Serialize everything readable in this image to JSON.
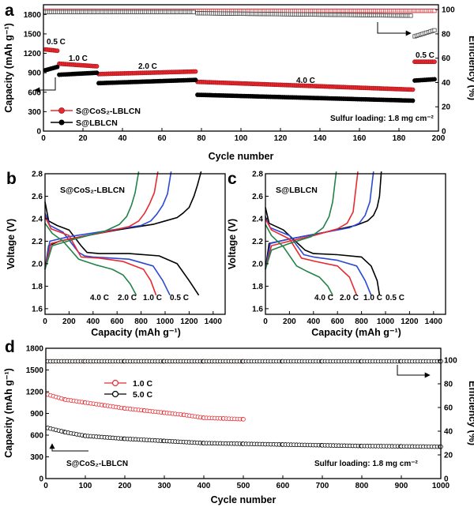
{
  "colors": {
    "red": "#e8292f",
    "black": "#000000",
    "blue": "#2a49d6",
    "green": "#23824a",
    "gray": "#444444"
  },
  "chart_data": [
    {
      "panel": "a",
      "type": "scatter",
      "xlabel": "Cycle number",
      "ylabel": "Capacity (mAh g⁻¹)",
      "y2label": "Efficiency (%)",
      "xlim": [
        0,
        200
      ],
      "ylim": [
        0,
        1950
      ],
      "y2lim": [
        0,
        104
      ],
      "xticks": [
        0,
        20,
        40,
        60,
        80,
        100,
        120,
        140,
        160,
        180,
        200
      ],
      "yticks": [
        0,
        300,
        600,
        900,
        1200,
        1500,
        1800
      ],
      "y2ticks": [
        0,
        20,
        40,
        60,
        80,
        100
      ],
      "rate_labels": [
        "0.5 C",
        "1.0 C",
        "2.0 C",
        "4.0 C",
        "0.5 C"
      ],
      "note": "Sulfur loading: 1.8 mg cm⁻²",
      "series": [
        {
          "name": "S@CoS₂-LBLCN",
          "axis": "left",
          "color": "red",
          "segments": [
            {
              "x": [
                1,
                7
              ],
              "y": [
                1260,
                1240
              ]
            },
            {
              "x": [
                8,
                27
              ],
              "y": [
                1040,
                1000
              ]
            },
            {
              "x": [
                28,
                77
              ],
              "y": [
                880,
                920
              ]
            },
            {
              "x": [
                78,
                187
              ],
              "y": [
                760,
                640
              ]
            },
            {
              "x": [
                188,
                198
              ],
              "y": [
                1070,
                1070
              ]
            }
          ]
        },
        {
          "name": "S@LBLCN",
          "axis": "left",
          "color": "black",
          "segments": [
            {
              "x": [
                1,
                7
              ],
              "y": [
                940,
                990
              ]
            },
            {
              "x": [
                8,
                27
              ],
              "y": [
                870,
                900
              ]
            },
            {
              "x": [
                28,
                77
              ],
              "y": [
                740,
                790
              ]
            },
            {
              "x": [
                78,
                187
              ],
              "y": [
                560,
                470
              ]
            },
            {
              "x": [
                188,
                198
              ],
              "y": [
                780,
                800
              ]
            }
          ]
        },
        {
          "name": "",
          "axis": "right",
          "color": "red",
          "hollow": true,
          "segments": [
            {
              "x": [
                1,
                198
              ],
              "y": [
                99,
                99
              ]
            }
          ]
        },
        {
          "name": "",
          "axis": "right",
          "color": "gray",
          "hollow": true,
          "segments": [
            {
              "x": [
                1,
                76
              ],
              "y": [
                98,
                98
              ]
            },
            {
              "x": [
                78,
                186
              ],
              "y": [
                97,
                95
              ]
            },
            {
              "x": [
                188,
                198
              ],
              "y": [
                78,
                83
              ]
            }
          ]
        }
      ]
    },
    {
      "panel": "b",
      "type": "line",
      "title": "S@CoS₂-LBLCN",
      "xlabel": "Capacity (mAh g⁻¹)",
      "ylabel": "Voltage (V)",
      "xlim": [
        0,
        1500
      ],
      "ylim": [
        1.55,
        2.8
      ],
      "xticks": [
        0,
        200,
        400,
        600,
        800,
        1000,
        1200,
        1400
      ],
      "yticks": [
        1.6,
        1.8,
        2.0,
        2.2,
        2.4,
        2.6,
        2.8
      ],
      "rate_labels": [
        "4.0 C",
        "2.0 C",
        "1.0 C",
        "0.5 C"
      ],
      "series": [
        {
          "name": "0.5 C",
          "color": "black",
          "discharge": {
            "x": [
              0,
              30,
              100,
              200,
              300,
              350,
              450,
              700,
              950,
              1100,
              1200,
              1280
            ],
            "y": [
              2.55,
              2.38,
              2.34,
              2.3,
              2.16,
              2.1,
              2.09,
              2.09,
              2.07,
              2.0,
              1.85,
              1.72
            ]
          },
          "charge": {
            "x": [
              0,
              30,
              120,
              300,
              600,
              900,
              1000,
              1100,
              1150,
              1200,
              1240,
              1270,
              1300
            ],
            "y": [
              1.95,
              2.16,
              2.2,
              2.24,
              2.3,
              2.35,
              2.38,
              2.41,
              2.45,
              2.5,
              2.6,
              2.7,
              2.82
            ]
          }
        },
        {
          "name": "1.0 C",
          "color": "blue",
          "discharge": {
            "x": [
              0,
              40,
              150,
              280,
              330,
              400,
              700,
              900,
              980,
              1040
            ],
            "y": [
              2.45,
              2.34,
              2.28,
              2.1,
              2.07,
              2.06,
              2.04,
              1.98,
              1.85,
              1.72
            ]
          },
          "charge": {
            "x": [
              0,
              40,
              200,
              500,
              800,
              880,
              930,
              980,
              1020,
              1050
            ],
            "y": [
              1.95,
              2.2,
              2.24,
              2.29,
              2.34,
              2.38,
              2.44,
              2.52,
              2.62,
              2.82
            ]
          }
        },
        {
          "name": "2.0 C",
          "color": "red",
          "discharge": {
            "x": [
              0,
              50,
              200,
              300,
              450,
              650,
              820,
              880,
              925
            ],
            "y": [
              2.42,
              2.31,
              2.25,
              2.06,
              2.05,
              2.02,
              1.95,
              1.85,
              1.72
            ]
          },
          "charge": {
            "x": [
              0,
              50,
              200,
              450,
              700,
              780,
              830,
              870,
              910,
              940
            ],
            "y": [
              1.95,
              2.18,
              2.22,
              2.27,
              2.33,
              2.38,
              2.45,
              2.53,
              2.63,
              2.82
            ]
          }
        },
        {
          "name": "4.0 C",
          "color": "green",
          "discharge": {
            "x": [
              0,
              60,
              150,
              280,
              420,
              560,
              650,
              710,
              760
            ],
            "y": [
              2.36,
              2.27,
              2.2,
              2.04,
              1.99,
              1.95,
              1.9,
              1.82,
              1.72
            ]
          },
          "charge": {
            "x": [
              0,
              60,
              250,
              500,
              620,
              680,
              720,
              750,
              780
            ],
            "y": [
              1.95,
              2.16,
              2.22,
              2.29,
              2.35,
              2.42,
              2.52,
              2.63,
              2.82
            ]
          }
        }
      ]
    },
    {
      "panel": "c",
      "type": "line",
      "title": "S@LBLCN",
      "xlabel": "Capacity (mAh g⁻¹)",
      "ylabel": "Voltage (V)",
      "xlim": [
        0,
        1500
      ],
      "ylim": [
        1.55,
        2.8
      ],
      "xticks": [
        0,
        200,
        400,
        600,
        800,
        1000,
        1200,
        1400
      ],
      "yticks": [
        1.6,
        1.8,
        2.0,
        2.2,
        2.4,
        2.6,
        2.8
      ],
      "rate_labels": [
        "4.0 C",
        "2.0 C",
        "1.0 C",
        "0.5 C"
      ],
      "series": [
        {
          "name": "0.5 C",
          "color": "black",
          "discharge": {
            "x": [
              0,
              30,
              150,
              250,
              330,
              400,
              600,
              800,
              880,
              930,
              950
            ],
            "y": [
              2.5,
              2.36,
              2.3,
              2.2,
              2.12,
              2.09,
              2.08,
              2.06,
              1.98,
              1.85,
              1.72
            ]
          },
          "charge": {
            "x": [
              0,
              30,
              200,
              500,
              750,
              850,
              900,
              930,
              950,
              965
            ],
            "y": [
              1.95,
              2.18,
              2.22,
              2.28,
              2.34,
              2.38,
              2.43,
              2.5,
              2.6,
              2.82
            ]
          }
        },
        {
          "name": "1.0 C",
          "color": "blue",
          "discharge": {
            "x": [
              0,
              40,
              200,
              320,
              400,
              600,
              760,
              830,
              880
            ],
            "y": [
              2.42,
              2.32,
              2.25,
              2.08,
              2.06,
              2.03,
              1.98,
              1.85,
              1.72
            ]
          },
          "charge": {
            "x": [
              0,
              40,
              200,
              450,
              700,
              780,
              830,
              870,
              900
            ],
            "y": [
              1.95,
              2.18,
              2.22,
              2.27,
              2.32,
              2.36,
              2.43,
              2.55,
              2.82
            ]
          }
        },
        {
          "name": "2.0 C",
          "color": "red",
          "discharge": {
            "x": [
              0,
              50,
              200,
              300,
              420,
              600,
              700,
              760
            ],
            "y": [
              2.4,
              2.3,
              2.22,
              2.05,
              2.02,
              1.98,
              1.88,
              1.72
            ]
          },
          "charge": {
            "x": [
              0,
              50,
              200,
              400,
              600,
              680,
              730,
              770
            ],
            "y": [
              1.95,
              2.16,
              2.2,
              2.25,
              2.31,
              2.36,
              2.46,
              2.82
            ]
          }
        },
        {
          "name": "4.0 C",
          "color": "green",
          "discharge": {
            "x": [
              0,
              50,
              150,
              260,
              350,
              450,
              520,
              560
            ],
            "y": [
              2.35,
              2.25,
              2.15,
              1.98,
              1.93,
              1.88,
              1.8,
              1.72
            ]
          },
          "charge": {
            "x": [
              0,
              50,
              200,
              380,
              480,
              530,
              560,
              590
            ],
            "y": [
              1.95,
              2.12,
              2.18,
              2.24,
              2.32,
              2.42,
              2.55,
              2.82
            ]
          }
        }
      ]
    },
    {
      "panel": "d",
      "type": "scatter",
      "xlabel": "Cycle number",
      "ylabel": "Capacity (mAh g⁻¹)",
      "y2label": "Efficiency (%)",
      "xlim": [
        0,
        1000
      ],
      "ylim": [
        0,
        1800
      ],
      "y2lim": [
        0,
        110
      ],
      "xticks": [
        0,
        100,
        200,
        300,
        400,
        500,
        600,
        700,
        800,
        900,
        1000
      ],
      "yticks": [
        0,
        300,
        600,
        900,
        1200,
        1500,
        1800
      ],
      "y2ticks": [
        0,
        20,
        40,
        60,
        80,
        100
      ],
      "curve_label": "S@CoS₂-LBLCN",
      "note": "Sulfur loading: 1.8 mg cm⁻²",
      "series": [
        {
          "name": "1.0 C",
          "axis": "left",
          "color": "red",
          "hollow": true,
          "x": [
            5,
            50,
            100,
            150,
            200,
            250,
            300,
            350,
            400,
            450,
            500
          ],
          "y": [
            1160,
            1090,
            1050,
            1010,
            970,
            940,
            910,
            880,
            840,
            830,
            820
          ]
        },
        {
          "name": "5.0 C",
          "axis": "left",
          "color": "black",
          "hollow": true,
          "x": [
            5,
            50,
            100,
            200,
            300,
            400,
            500,
            600,
            700,
            800,
            900,
            1000
          ],
          "y": [
            700,
            640,
            590,
            550,
            520,
            490,
            480,
            470,
            460,
            450,
            445,
            440
          ]
        },
        {
          "name": "",
          "axis": "right",
          "color": "red",
          "hollow": true,
          "x": [
            5,
            100,
            200,
            300,
            400,
            500
          ],
          "y": [
            99,
            99,
            99,
            99,
            99,
            99
          ]
        },
        {
          "name": "",
          "axis": "right",
          "color": "black",
          "hollow": true,
          "x": [
            5,
            100,
            200,
            300,
            400,
            500,
            600,
            700,
            800,
            900,
            1000
          ],
          "y": [
            99,
            99,
            99,
            99,
            99,
            99,
            99,
            99,
            99,
            99,
            99
          ]
        }
      ]
    }
  ]
}
